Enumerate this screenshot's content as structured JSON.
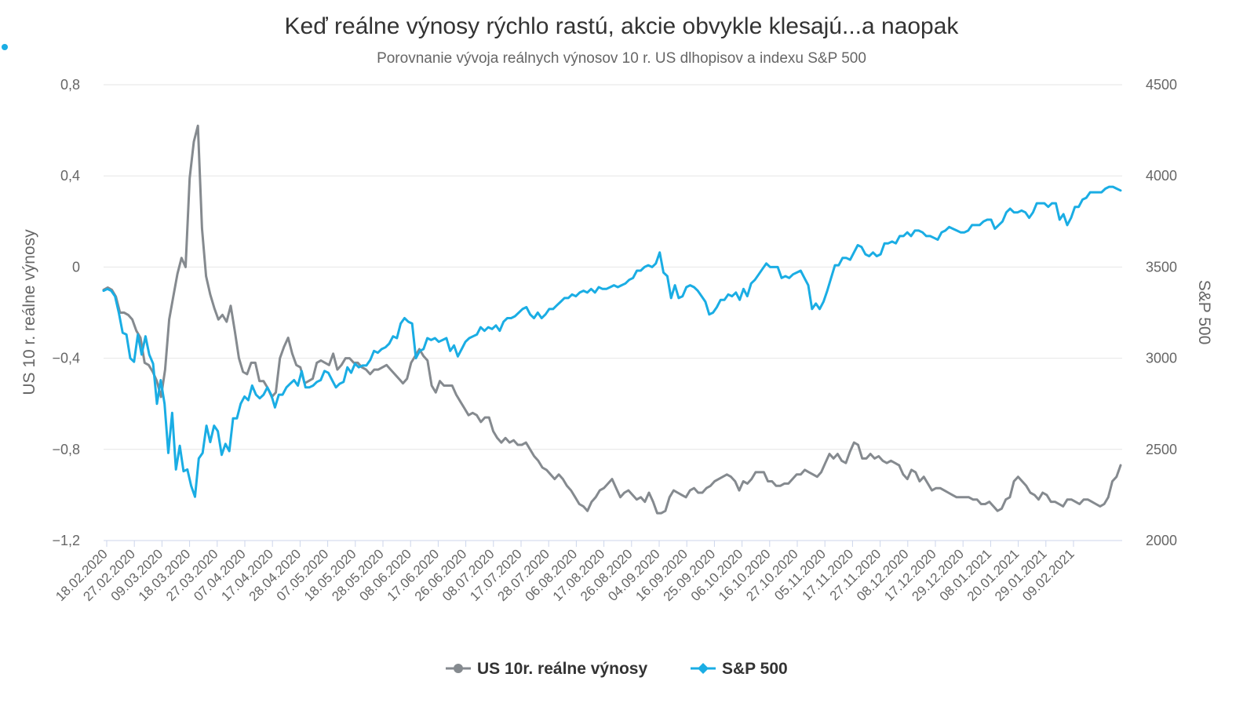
{
  "chart_data": {
    "type": "line",
    "title": "Keď reálne výnosy rýchlo rastú, akcie obvykle klesajú...a naopak",
    "subtitle": "Porovnanie vývoja reálnych výnosov 10 r. US dlhopisov a indexu S&P 500",
    "y_left": {
      "label": "US 10 r. reálne výnosy",
      "ticks": [
        "0,8",
        "0,4",
        "0",
        "−0,4",
        "−0,8",
        "−1,2"
      ],
      "tick_values": [
        0.8,
        0.4,
        0,
        -0.4,
        -0.8,
        -1.2
      ],
      "ylim": [
        -1.2,
        0.8
      ]
    },
    "y_right": {
      "label": "S&P 500",
      "ticks": [
        "4500",
        "4000",
        "3500",
        "3000",
        "2500",
        "2000"
      ],
      "tick_values": [
        4500,
        4000,
        3500,
        3000,
        2500,
        2000
      ],
      "ylim": [
        2000,
        4500
      ]
    },
    "x_tick_labels": [
      "18.02.2020",
      "27.02.2020",
      "09.03.2020",
      "18.03.2020",
      "27.03.2020",
      "07.04.2020",
      "17.04.2020",
      "28.04.2020",
      "07.05.2020",
      "18.05.2020",
      "28.05.2020",
      "08.06.2020",
      "17.06.2020",
      "26.06.2020",
      "08.07.2020",
      "17.07.2020",
      "28.07.2020",
      "06.08.2020",
      "17.08.2020",
      "26.08.2020",
      "04.09.2020",
      "16.09.2020",
      "25.09.2020",
      "06.10.2020",
      "16.10.2020",
      "27.10.2020",
      "05.11.2020",
      "17.11.2020",
      "27.11.2020",
      "08.12.2020",
      "17.12.2020",
      "29.12.2020",
      "08.01.2021",
      "20.01.2021",
      "29.01.2021",
      "09.02.2021"
    ],
    "legend_position": "bottom-center",
    "grid": true,
    "series": [
      {
        "name": "US 10r. reálne výnosy",
        "axis": "left",
        "color": "#858a8f",
        "values": [
          -0.1,
          -0.09,
          -0.1,
          -0.13,
          -0.2,
          -0.2,
          -0.21,
          -0.23,
          -0.28,
          -0.31,
          -0.42,
          -0.43,
          -0.46,
          -0.5,
          -0.57,
          -0.45,
          -0.23,
          -0.13,
          -0.03,
          0.04,
          0.0,
          0.39,
          0.55,
          0.62,
          0.17,
          -0.04,
          -0.12,
          -0.18,
          -0.23,
          -0.21,
          -0.24,
          -0.17,
          -0.28,
          -0.4,
          -0.46,
          -0.47,
          -0.42,
          -0.42,
          -0.5,
          -0.5,
          -0.53,
          -0.57,
          -0.55,
          -0.4,
          -0.35,
          -0.31,
          -0.38,
          -0.43,
          -0.44,
          -0.51,
          -0.5,
          -0.49,
          -0.42,
          -0.41,
          -0.42,
          -0.43,
          -0.38,
          -0.45,
          -0.43,
          -0.4,
          -0.4,
          -0.42,
          -0.42,
          -0.44,
          -0.45,
          -0.47,
          -0.45,
          -0.45,
          -0.44,
          -0.43,
          -0.45,
          -0.47,
          -0.49,
          -0.51,
          -0.49,
          -0.42,
          -0.39,
          -0.36,
          -0.39,
          -0.41,
          -0.52,
          -0.55,
          -0.5,
          -0.52,
          -0.52,
          -0.52,
          -0.56,
          -0.59,
          -0.62,
          -0.65,
          -0.64,
          -0.65,
          -0.68,
          -0.66,
          -0.66,
          -0.72,
          -0.75,
          -0.77,
          -0.75,
          -0.77,
          -0.76,
          -0.78,
          -0.78,
          -0.77,
          -0.8,
          -0.83,
          -0.85,
          -0.88,
          -0.89,
          -0.91,
          -0.93,
          -0.91,
          -0.93,
          -0.96,
          -0.98,
          -1.01,
          -1.04,
          -1.05,
          -1.07,
          -1.03,
          -1.01,
          -0.98,
          -0.97,
          -0.95,
          -0.93,
          -0.97,
          -1.01,
          -0.99,
          -0.98,
          -1.0,
          -1.02,
          -1.01,
          -1.03,
          -0.99,
          -1.03,
          -1.08,
          -1.08,
          -1.07,
          -1.01,
          -0.98,
          -0.99,
          -1.0,
          -1.01,
          -0.98,
          -0.97,
          -0.99,
          -0.99,
          -0.97,
          -0.96,
          -0.94,
          -0.93,
          -0.92,
          -0.91,
          -0.92,
          -0.94,
          -0.98,
          -0.94,
          -0.95,
          -0.93,
          -0.9,
          -0.9,
          -0.9,
          -0.94,
          -0.94,
          -0.96,
          -0.96,
          -0.95,
          -0.95,
          -0.93,
          -0.91,
          -0.91,
          -0.89,
          -0.9,
          -0.91,
          -0.92,
          -0.9,
          -0.86,
          -0.82,
          -0.84,
          -0.82,
          -0.85,
          -0.86,
          -0.81,
          -0.77,
          -0.78,
          -0.84,
          -0.84,
          -0.82,
          -0.84,
          -0.83,
          -0.85,
          -0.86,
          -0.85,
          -0.86,
          -0.87,
          -0.91,
          -0.93,
          -0.89,
          -0.9,
          -0.94,
          -0.92,
          -0.95,
          -0.98,
          -0.97,
          -0.97,
          -0.98,
          -0.99,
          -1.0,
          -1.01,
          -1.01,
          -1.01,
          -1.01,
          -1.02,
          -1.02,
          -1.04,
          -1.04,
          -1.03,
          -1.05,
          -1.07,
          -1.06,
          -1.02,
          -1.01,
          -0.94,
          -0.92,
          -0.94,
          -0.96,
          -0.99,
          -1.0,
          -1.02,
          -0.99,
          -1.0,
          -1.03,
          -1.03,
          -1.04,
          -1.05,
          -1.02,
          -1.02,
          -1.03,
          -1.04,
          -1.02,
          -1.02,
          -1.03,
          -1.04,
          -1.05,
          -1.04,
          -1.01,
          -0.94,
          -0.92,
          -0.87
        ]
      },
      {
        "name": "S&P 500",
        "axis": "right",
        "color": "#1aade4",
        "values": [
          3370,
          3380,
          3370,
          3340,
          3250,
          3140,
          3130,
          3000,
          2980,
          3130,
          3020,
          3120,
          3020,
          2970,
          2750,
          2880,
          2750,
          2480,
          2700,
          2390,
          2520,
          2380,
          2390,
          2300,
          2240,
          2450,
          2480,
          2630,
          2540,
          2630,
          2600,
          2470,
          2530,
          2490,
          2670,
          2670,
          2750,
          2790,
          2770,
          2850,
          2800,
          2780,
          2800,
          2840,
          2800,
          2730,
          2800,
          2800,
          2840,
          2860,
          2880,
          2850,
          2930,
          2840,
          2840,
          2850,
          2870,
          2880,
          2930,
          2920,
          2880,
          2840,
          2860,
          2870,
          2950,
          2920,
          2970,
          2950,
          2960,
          2960,
          2990,
          3040,
          3030,
          3050,
          3060,
          3080,
          3120,
          3110,
          3190,
          3220,
          3200,
          3190,
          3000,
          3040,
          3050,
          3110,
          3100,
          3110,
          3090,
          3100,
          3110,
          3040,
          3070,
          3010,
          3050,
          3090,
          3110,
          3120,
          3130,
          3170,
          3150,
          3170,
          3160,
          3180,
          3150,
          3200,
          3220,
          3220,
          3230,
          3250,
          3270,
          3280,
          3240,
          3220,
          3250,
          3220,
          3240,
          3270,
          3270,
          3290,
          3310,
          3330,
          3330,
          3350,
          3340,
          3360,
          3370,
          3360,
          3380,
          3360,
          3390,
          3380,
          3380,
          3390,
          3400,
          3390,
          3400,
          3410,
          3430,
          3440,
          3480,
          3480,
          3500,
          3510,
          3500,
          3520,
          3580,
          3470,
          3450,
          3330,
          3400,
          3330,
          3340,
          3390,
          3400,
          3390,
          3370,
          3340,
          3310,
          3240,
          3250,
          3280,
          3320,
          3320,
          3350,
          3340,
          3360,
          3320,
          3380,
          3340,
          3410,
          3430,
          3460,
          3490,
          3520,
          3500,
          3500,
          3500,
          3440,
          3450,
          3440,
          3460,
          3470,
          3480,
          3440,
          3400,
          3270,
          3300,
          3270,
          3310,
          3370,
          3440,
          3510,
          3510,
          3550,
          3550,
          3540,
          3580,
          3620,
          3610,
          3570,
          3560,
          3580,
          3560,
          3570,
          3630,
          3630,
          3640,
          3630,
          3670,
          3670,
          3690,
          3670,
          3700,
          3700,
          3690,
          3670,
          3670,
          3660,
          3650,
          3690,
          3700,
          3720,
          3710,
          3700,
          3690,
          3690,
          3700,
          3730,
          3730,
          3730,
          3750,
          3760,
          3760,
          3710,
          3730,
          3750,
          3800,
          3820,
          3800,
          3800,
          3810,
          3800,
          3770,
          3800,
          3850,
          3850,
          3850,
          3830,
          3850,
          3850,
          3760,
          3790,
          3730,
          3770,
          3830,
          3830,
          3870,
          3880,
          3910,
          3910,
          3910,
          3910,
          3930,
          3940,
          3940,
          3930,
          3920
        ]
      }
    ]
  },
  "legend": {
    "items": [
      {
        "label": "US 10r. reálne výnosy",
        "color": "#858a8f"
      },
      {
        "label": "S&P 500",
        "color": "#1aade4"
      }
    ]
  },
  "decorations": {
    "corner_dot_color": "#1aade4"
  }
}
